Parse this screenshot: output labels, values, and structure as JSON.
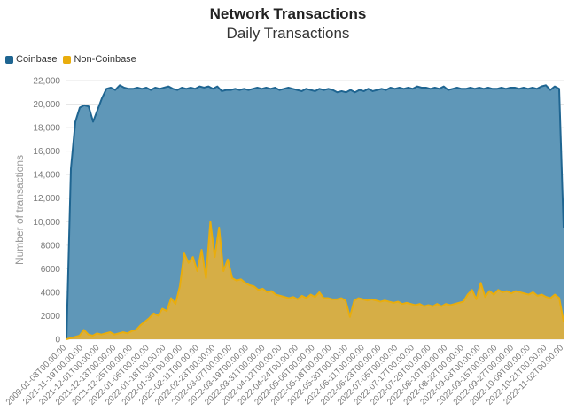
{
  "chart_data": {
    "type": "area",
    "title": "Network Transactions",
    "subtitle": "Daily Transactions",
    "ylabel": "Number of transactions",
    "xlabel": "",
    "ylim": [
      0,
      22000
    ],
    "yticks": [
      0,
      2000,
      4000,
      6000,
      8000,
      10000,
      12000,
      14000,
      16000,
      18000,
      20000,
      22000
    ],
    "ytick_labels": [
      "0",
      "2000",
      "4000",
      "6000",
      "8000",
      "10,000",
      "12,000",
      "14,000",
      "16,000",
      "18,000",
      "20,000",
      "22,000"
    ],
    "grid": true,
    "legend_position": "top-left",
    "stacked": false,
    "x_tick_labels": [
      "2009-01-03T00:00:00",
      "2021-11-19T00:00:00",
      "2021-12-01T00:00:00",
      "2021-12-13T00:00:00",
      "2021-12-25T00:00:00",
      "2022-01-06T00:00:00",
      "2022-01-18T00:00:00",
      "2022-01-30T00:00:00",
      "2022-02-11T00:00:00",
      "2022-02-23T00:00:00",
      "2022-03-07T00:00:00",
      "2022-03-19T00:00:00",
      "2022-03-31T00:00:00",
      "2022-04-12T00:00:00",
      "2022-04-24T00:00:00",
      "2022-05-06T00:00:00",
      "2022-05-18T00:00:00",
      "2022-05-30T00:00:00",
      "2022-06-11T00:00:00",
      "2022-06-23T00:00:00",
      "2022-07-05T00:00:00",
      "2022-07-17T00:00:00",
      "2022-07-29T00:00:00",
      "2022-08-10T00:00:00",
      "2022-08-22T00:00:00",
      "2022-09-03T00:00:00",
      "2022-09-15T00:00:00",
      "2022-09-27T00:00:00",
      "2022-10-09T00:00:00",
      "2022-10-21T00:00:00",
      "2022-11-02T00:00:00"
    ],
    "series": [
      {
        "name": "Coinbase",
        "color": "#1f6591",
        "fill": "#5f97b8",
        "values": [
          0,
          14500,
          18500,
          19700,
          19900,
          19800,
          18500,
          19500,
          20500,
          21300,
          21400,
          21200,
          21600,
          21400,
          21300,
          21300,
          21400,
          21300,
          21400,
          21200,
          21400,
          21300,
          21400,
          21500,
          21300,
          21200,
          21400,
          21300,
          21400,
          21300,
          21500,
          21400,
          21500,
          21300,
          21500,
          21100,
          21200,
          21200,
          21300,
          21200,
          21300,
          21200,
          21300,
          21400,
          21300,
          21400,
          21300,
          21400,
          21200,
          21300,
          21400,
          21300,
          21200,
          21100,
          21300,
          21200,
          21100,
          21300,
          21200,
          21300,
          21200,
          21000,
          21100,
          21000,
          21200,
          21000,
          21200,
          21100,
          21300,
          21100,
          21200,
          21300,
          21200,
          21400,
          21300,
          21400,
          21300,
          21400,
          21300,
          21500,
          21400,
          21400,
          21300,
          21400,
          21300,
          21500,
          21200,
          21300,
          21400,
          21300,
          21300,
          21400,
          21300,
          21400,
          21300,
          21400,
          21300,
          21300,
          21400,
          21300,
          21400,
          21400,
          21300,
          21400,
          21300,
          21400,
          21300,
          21500,
          21600,
          21200,
          21500,
          21300,
          9500
        ]
      },
      {
        "name": "Non-Coinbase",
        "color": "#e9ad0c",
        "fill": "#d6ae46",
        "values": [
          0,
          100,
          200,
          300,
          800,
          400,
          300,
          500,
          400,
          500,
          600,
          400,
          500,
          600,
          500,
          700,
          800,
          1200,
          1500,
          1800,
          2200,
          2000,
          2600,
          2400,
          3500,
          3000,
          4500,
          7300,
          6500,
          7000,
          5800,
          7600,
          5200,
          10000,
          7000,
          9500,
          5800,
          6800,
          5200,
          5000,
          5100,
          4800,
          4600,
          4500,
          4200,
          4300,
          4000,
          4100,
          3800,
          3700,
          3600,
          3500,
          3600,
          3400,
          3700,
          3500,
          3800,
          3600,
          4000,
          3500,
          3500,
          3400,
          3400,
          3500,
          3300,
          1900,
          3300,
          3500,
          3400,
          3300,
          3400,
          3300,
          3200,
          3300,
          3200,
          3100,
          3200,
          3000,
          3100,
          3000,
          2900,
          3000,
          2800,
          2900,
          2800,
          3000,
          2800,
          3000,
          2900,
          3000,
          3100,
          3200,
          3800,
          4200,
          3400,
          4800,
          3600,
          4100,
          3800,
          4200,
          4000,
          4100,
          3900,
          4100,
          4000,
          3900,
          3800,
          4000,
          3700,
          3800,
          3600,
          3500,
          3800,
          3500,
          1500
        ]
      }
    ]
  }
}
